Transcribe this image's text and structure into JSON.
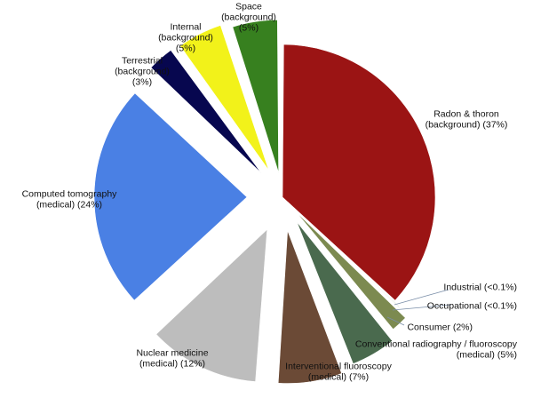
{
  "chart_data": {
    "type": "pie",
    "title": "",
    "start": "top",
    "direction": "clockwise",
    "exploded": true,
    "slices": [
      {
        "lines": [
          "Radon & thoron",
          "(background) (37%)"
        ],
        "value": 37,
        "color": "#9b1414"
      },
      {
        "lines": [
          "Industrial (<0.1%)"
        ],
        "value": 0.1,
        "color": "#b7ccaa"
      },
      {
        "lines": [
          "Occupational (<0.1%)"
        ],
        "value": 0.1,
        "color": "#c9d9be"
      },
      {
        "lines": [
          "Consumer (2%)"
        ],
        "value": 2,
        "color": "#7c8a50"
      },
      {
        "lines": [
          "Conventional radiography / fluoroscopy",
          "(medical) (5%)"
        ],
        "value": 5,
        "color": "#4a6a4e"
      },
      {
        "lines": [
          "Interventional fluoroscopy",
          "(medical) (7%)"
        ],
        "value": 7,
        "color": "#6b4a36"
      },
      {
        "lines": [
          "Nuclear medicine",
          "(medical) (12%)"
        ],
        "value": 12,
        "color": "#bdbdbd"
      },
      {
        "lines": [
          "Computed tomography",
          "(medical) (24%)"
        ],
        "value": 24,
        "color": "#4a80e4"
      },
      {
        "lines": [
          "Terrestrial",
          "(background)",
          "(3%)"
        ],
        "value": 3,
        "color": "#07074f"
      },
      {
        "lines": [
          "Internal",
          "(background)",
          "(5%)"
        ],
        "value": 5,
        "color": "#f2f21a"
      },
      {
        "lines": [
          "Space",
          "(background)",
          "(5%)"
        ],
        "value": 5,
        "color": "#37801f"
      }
    ]
  }
}
